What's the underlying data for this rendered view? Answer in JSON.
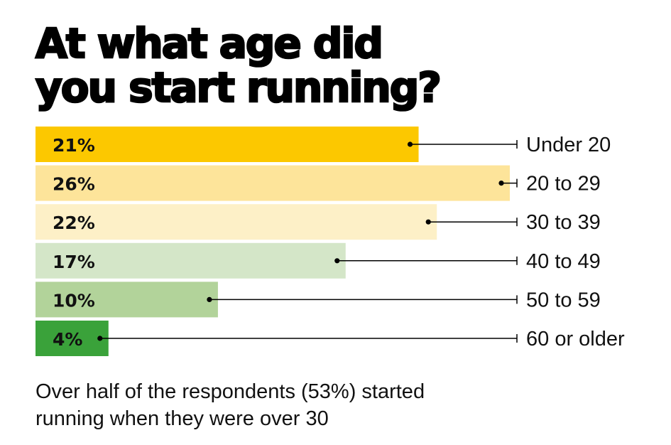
{
  "title": {
    "line1": "At what age did",
    "line2": "you start running?"
  },
  "caption": {
    "line1": "Over half of the respondents (53%) started",
    "line2": "running when they were over 30"
  },
  "chart_data": {
    "type": "bar",
    "orientation": "horizontal",
    "categories": [
      "Under 20",
      "20 to 29",
      "30 to 39",
      "40 to 49",
      "50 to 59",
      "60 or older"
    ],
    "values": [
      21,
      26,
      22,
      17,
      10,
      4
    ],
    "value_labels": [
      "21%",
      "26%",
      "22%",
      "17%",
      "10%",
      "4%"
    ],
    "unit": "%",
    "xlim": [
      0,
      26
    ],
    "colors": [
      "#fcc800",
      "#fde49a",
      "#fdf0c7",
      "#d4e6c8",
      "#b2d39a",
      "#3aa23a"
    ],
    "grid": false,
    "legend": "none"
  }
}
